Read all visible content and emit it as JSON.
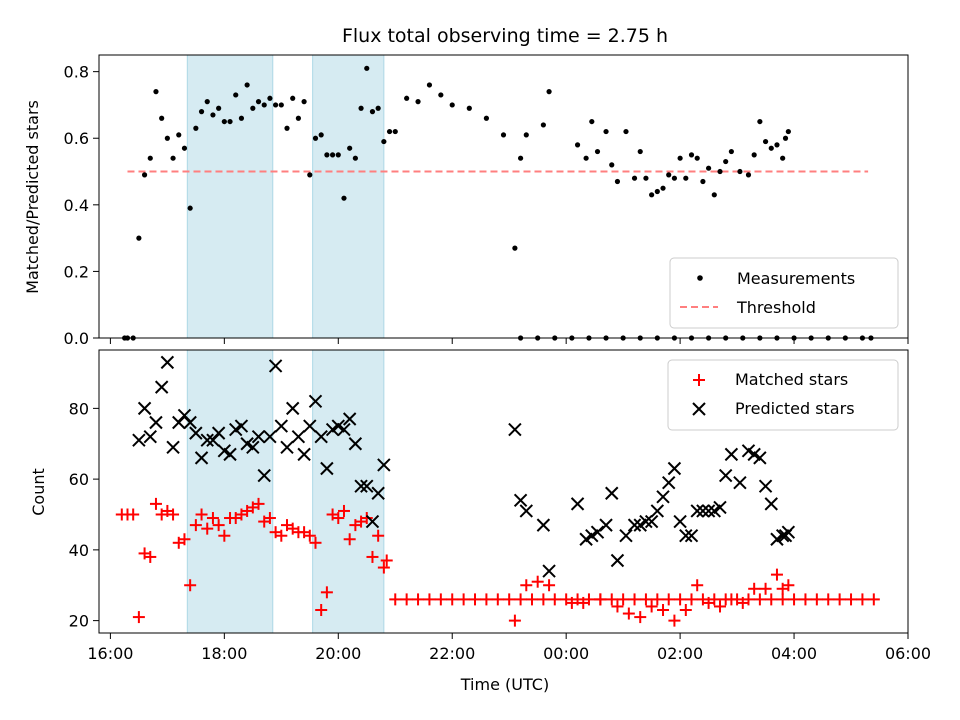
{
  "chart_data": [
    {
      "type": "scatter",
      "title": "Flux total observing time = 2.75 h",
      "xlabel": "",
      "ylabel": "Matched/Predicted stars",
      "xlim": [
        15.8,
        30.0
      ],
      "ylim": [
        0.0,
        0.85
      ],
      "yticks": [
        0.0,
        0.2,
        0.4,
        0.6,
        0.8
      ],
      "ytick_labels": [
        "0.0",
        "0.2",
        "0.4",
        "0.6",
        "0.8"
      ],
      "shaded_intervals": [
        [
          17.35,
          18.85
        ],
        [
          19.55,
          20.8
        ]
      ],
      "threshold": {
        "name": "Threshold",
        "value": 0.5,
        "x_range": [
          16.3,
          29.3
        ],
        "color": "#ff7f7f"
      },
      "legend_position": "lower-right",
      "series": [
        {
          "name": "Measurements",
          "marker": "dot",
          "color": "#000000",
          "x": [
            16.25,
            16.3,
            16.4,
            16.5,
            16.6,
            16.7,
            16.8,
            16.9,
            17.0,
            17.1,
            17.2,
            17.3,
            17.4,
            17.5,
            17.6,
            17.7,
            17.8,
            17.9,
            18.0,
            18.1,
            18.2,
            18.3,
            18.4,
            18.5,
            18.6,
            18.7,
            18.8,
            18.9,
            19.0,
            19.1,
            19.2,
            19.3,
            19.4,
            19.5,
            19.6,
            19.7,
            19.8,
            19.9,
            20.0,
            20.1,
            20.2,
            20.3,
            20.4,
            20.5,
            20.6,
            20.7,
            20.8,
            20.9,
            21.0,
            21.2,
            21.4,
            21.6,
            21.8,
            22.0,
            22.3,
            22.6,
            22.9,
            23.2,
            23.5,
            23.8,
            24.1,
            24.4,
            24.7,
            25.0,
            25.3,
            25.6,
            25.9,
            26.2,
            26.5,
            26.8,
            27.1,
            27.4,
            27.7,
            28.0,
            28.3,
            28.6,
            28.9,
            29.2,
            29.35,
            23.1,
            23.2,
            23.3,
            23.6,
            23.7,
            24.2,
            24.35,
            24.45,
            24.55,
            24.7,
            24.8,
            24.9,
            25.05,
            25.2,
            25.3,
            25.4,
            25.5,
            25.6,
            25.7,
            25.8,
            25.9,
            26.0,
            26.1,
            26.2,
            26.3,
            26.4,
            26.5,
            26.6,
            26.7,
            26.8,
            26.9,
            27.05,
            27.2,
            27.3,
            27.4,
            27.5,
            27.6,
            27.7,
            27.8,
            27.85,
            27.9
          ],
          "y": [
            0.0,
            0.0,
            0.0,
            0.3,
            0.49,
            0.54,
            0.74,
            0.66,
            0.6,
            0.54,
            0.61,
            0.57,
            0.39,
            0.63,
            0.68,
            0.71,
            0.67,
            0.69,
            0.65,
            0.65,
            0.73,
            0.66,
            0.76,
            0.69,
            0.71,
            0.7,
            0.72,
            0.7,
            0.7,
            0.63,
            0.72,
            0.66,
            0.71,
            0.49,
            0.6,
            0.61,
            0.55,
            0.55,
            0.55,
            0.42,
            0.57,
            0.54,
            0.69,
            0.81,
            0.68,
            0.69,
            0.59,
            0.62,
            0.62,
            0.72,
            0.71,
            0.76,
            0.73,
            0.7,
            0.69,
            0.66,
            0.61,
            0.0,
            0.0,
            0.0,
            0.0,
            0.0,
            0.0,
            0.0,
            0.0,
            0.0,
            0.0,
            0.0,
            0.0,
            0.0,
            0.0,
            0.0,
            0.0,
            0.0,
            0.0,
            0.0,
            0.0,
            0.0,
            0.0,
            0.27,
            0.54,
            0.61,
            0.64,
            0.74,
            0.58,
            0.54,
            0.65,
            0.56,
            0.62,
            0.52,
            0.47,
            0.62,
            0.48,
            0.56,
            0.48,
            0.43,
            0.44,
            0.45,
            0.49,
            0.48,
            0.54,
            0.48,
            0.55,
            0.54,
            0.47,
            0.51,
            0.43,
            0.5,
            0.53,
            0.56,
            0.5,
            0.49,
            0.55,
            0.65,
            0.59,
            0.57,
            0.58,
            0.54,
            0.6,
            0.62
          ]
        }
      ]
    },
    {
      "type": "scatter",
      "title": "",
      "xlabel": "Time (UTC)",
      "ylabel": "Count",
      "xlim": [
        15.8,
        30.0
      ],
      "ylim": [
        16.5,
        96.5
      ],
      "xticks": [
        16,
        18,
        20,
        22,
        24,
        26,
        28,
        30
      ],
      "xtick_labels": [
        "16:00",
        "18:00",
        "20:00",
        "22:00",
        "00:00",
        "02:00",
        "04:00",
        "06:00"
      ],
      "yticks": [
        20,
        40,
        60,
        80
      ],
      "ytick_labels": [
        "20",
        "40",
        "60",
        "80"
      ],
      "shaded_intervals": [
        [
          17.35,
          18.85
        ],
        [
          19.55,
          20.8
        ]
      ],
      "legend_position": "upper-right",
      "series": [
        {
          "name": "Matched stars",
          "marker": "plus",
          "color": "#ff0000",
          "x": [
            16.2,
            16.3,
            16.4,
            16.5,
            16.6,
            16.7,
            16.8,
            16.9,
            17.0,
            17.1,
            17.2,
            17.3,
            17.4,
            17.5,
            17.6,
            17.7,
            17.8,
            17.9,
            18.0,
            18.1,
            18.2,
            18.3,
            18.4,
            18.5,
            18.6,
            18.7,
            18.8,
            18.9,
            19.0,
            19.1,
            19.2,
            19.3,
            19.4,
            19.5,
            19.6,
            19.7,
            19.8,
            19.9,
            20.0,
            20.1,
            20.2,
            20.3,
            20.4,
            20.5,
            20.6,
            20.7,
            20.8,
            20.85,
            21.0,
            21.2,
            21.4,
            21.6,
            21.8,
            22.0,
            22.2,
            22.4,
            22.6,
            22.8,
            23.0,
            23.2,
            23.4,
            23.6,
            23.8,
            24.0,
            24.2,
            24.4,
            24.6,
            24.8,
            25.0,
            25.2,
            25.4,
            25.6,
            25.8,
            26.0,
            26.2,
            26.4,
            26.6,
            26.8,
            27.0,
            27.2,
            27.4,
            27.6,
            27.8,
            28.0,
            28.2,
            28.4,
            28.6,
            28.8,
            29.0,
            29.2,
            29.4,
            23.1,
            23.3,
            23.5,
            23.7,
            24.1,
            24.3,
            24.6,
            24.9,
            25.1,
            25.3,
            25.5,
            25.7,
            25.9,
            26.1,
            26.3,
            26.5,
            26.7,
            26.9,
            27.1,
            27.3,
            27.5,
            27.7,
            27.8,
            27.9
          ],
          "y": [
            50,
            50,
            50,
            21,
            39,
            38,
            53,
            50,
            51,
            50,
            42,
            43,
            30,
            47,
            50,
            46,
            49,
            47,
            44,
            49,
            49,
            50,
            51,
            52,
            53,
            48,
            49,
            45,
            44,
            47,
            46,
            45,
            45,
            44,
            42,
            23,
            28,
            50,
            49,
            51,
            43,
            47,
            48,
            49,
            38,
            44,
            35,
            37,
            26,
            26,
            26,
            26,
            26,
            26,
            26,
            26,
            26,
            26,
            26,
            26,
            26,
            26,
            26,
            26,
            26,
            26,
            26,
            26,
            26,
            26,
            26,
            26,
            26,
            26,
            26,
            26,
            26,
            26,
            26,
            26,
            26,
            26,
            26,
            26,
            26,
            26,
            26,
            26,
            26,
            26,
            26,
            20,
            30,
            31,
            30,
            25,
            25,
            26,
            24,
            22,
            21,
            24,
            23,
            20,
            23,
            30,
            25,
            24,
            26,
            25,
            29,
            29,
            33,
            29,
            30
          ]
        },
        {
          "name": "Predicted stars",
          "marker": "x",
          "color": "#000000",
          "x": [
            16.5,
            16.6,
            16.7,
            16.8,
            16.9,
            17.0,
            17.1,
            17.2,
            17.3,
            17.4,
            17.5,
            17.6,
            17.7,
            17.8,
            17.9,
            18.0,
            18.1,
            18.2,
            18.3,
            18.4,
            18.5,
            18.6,
            18.7,
            18.8,
            18.9,
            19.0,
            19.1,
            19.2,
            19.3,
            19.4,
            19.5,
            19.6,
            19.7,
            19.8,
            19.9,
            20.0,
            20.1,
            20.2,
            20.3,
            20.4,
            20.5,
            20.6,
            20.7,
            20.8,
            23.1,
            23.2,
            23.3,
            23.6,
            23.7,
            24.2,
            24.35,
            24.45,
            24.55,
            24.7,
            24.8,
            24.9,
            25.05,
            25.2,
            25.3,
            25.4,
            25.5,
            25.6,
            25.7,
            25.8,
            25.9,
            26.0,
            26.1,
            26.2,
            26.3,
            26.4,
            26.5,
            26.6,
            26.7,
            26.8,
            26.9,
            27.05,
            27.2,
            27.3,
            27.4,
            27.5,
            27.6,
            27.7,
            27.8,
            27.85,
            27.9
          ],
          "y": [
            71,
            80,
            72,
            76,
            86,
            93,
            69,
            76,
            78,
            76,
            73,
            66,
            71,
            71,
            73,
            68,
            67,
            74,
            75,
            70,
            69,
            72,
            61,
            72,
            92,
            75,
            69,
            80,
            72,
            67,
            75,
            82,
            72,
            63,
            74,
            75,
            74,
            77,
            70,
            58,
            58,
            48,
            56,
            64,
            74,
            54,
            51,
            47,
            34,
            53,
            43,
            44,
            45,
            47,
            56,
            37,
            44,
            47,
            47,
            48,
            48,
            51,
            55,
            59,
            63,
            48,
            44,
            44,
            51,
            51,
            51,
            51,
            52,
            61,
            67,
            59,
            68,
            67,
            66,
            58,
            53,
            43,
            44,
            44,
            45
          ]
        }
      ]
    }
  ]
}
